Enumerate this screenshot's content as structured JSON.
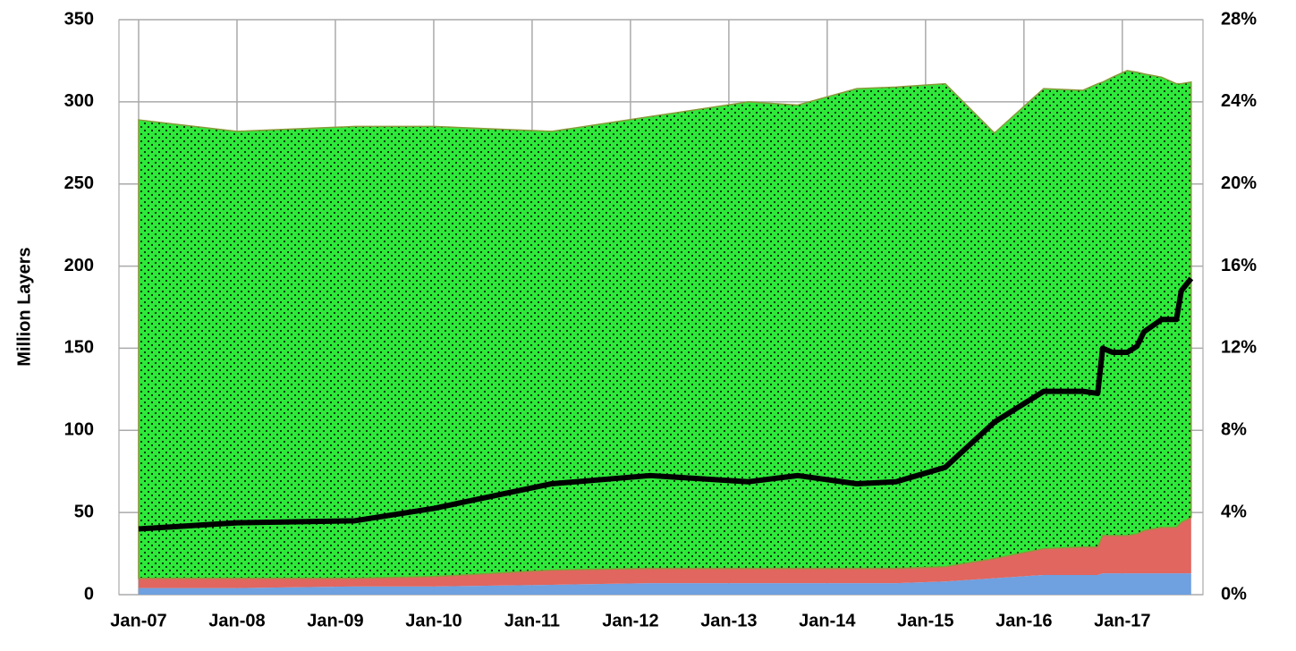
{
  "chart_data": {
    "type": "stacked-area-line",
    "y_label": "Million Layers",
    "x": [
      2007.0,
      2008.0,
      2009.2,
      2010.0,
      2011.2,
      2012.2,
      2013.2,
      2013.7,
      2014.3,
      2014.7,
      2015.2,
      2015.7,
      2016.2,
      2016.6,
      2016.75,
      2016.8,
      2016.9,
      2017.05,
      2017.15,
      2017.22,
      2017.4,
      2017.55,
      2017.6,
      2017.7
    ],
    "series": [
      {
        "color": "#6fa0e0",
        "values": [
          4,
          4,
          5,
          5,
          6,
          7,
          7,
          7,
          7,
          7,
          8,
          10,
          12,
          12,
          12,
          13,
          13,
          13,
          13,
          13,
          13,
          13,
          13,
          13
        ]
      },
      {
        "color": "#e0665f",
        "values": [
          6,
          6,
          5,
          6,
          9,
          9,
          9,
          9,
          9,
          9,
          9,
          12,
          16,
          17,
          17,
          23,
          23,
          23,
          24,
          26,
          28,
          28,
          31,
          34
        ]
      },
      {
        "color": "#2ee83a",
        "pattern": "dots",
        "values": [
          279,
          272,
          275,
          274,
          267,
          275,
          284,
          282,
          292,
          293,
          294,
          259,
          280,
          278,
          282,
          276,
          279,
          283,
          281,
          278,
          274,
          270,
          267,
          265
        ]
      },
      {
        "color": "#000000",
        "axis": "y2",
        "values": [
          3.2,
          3.5,
          3.6,
          4.2,
          5.4,
          5.8,
          5.5,
          5.8,
          5.4,
          5.5,
          6.2,
          8.4,
          9.9,
          9.9,
          9.8,
          12.0,
          11.8,
          11.8,
          12.1,
          12.8,
          13.4,
          13.4,
          14.8,
          15.4
        ]
      }
    ],
    "xlim": [
      2006.8,
      2017.82
    ],
    "xticks": [
      {
        "value": 2007,
        "label": "Jan-07"
      },
      {
        "value": 2008,
        "label": "Jan-08"
      },
      {
        "value": 2009,
        "label": "Jan-09"
      },
      {
        "value": 2010,
        "label": "Jan-10"
      },
      {
        "value": 2011,
        "label": "Jan-11"
      },
      {
        "value": 2012,
        "label": "Jan-12"
      },
      {
        "value": 2013,
        "label": "Jan-13"
      },
      {
        "value": 2014,
        "label": "Jan-14"
      },
      {
        "value": 2015,
        "label": "Jan-15"
      },
      {
        "value": 2016,
        "label": "Jan-16"
      },
      {
        "value": 2017,
        "label": "Jan-17"
      }
    ],
    "ylim": [
      0,
      350
    ],
    "yticks": [
      0,
      50,
      100,
      150,
      200,
      250,
      300,
      350
    ],
    "y2lim": [
      0,
      28
    ],
    "y2ticks": [
      {
        "value": 0,
        "label": "0%"
      },
      {
        "value": 4,
        "label": "4%"
      },
      {
        "value": 8,
        "label": "8%"
      },
      {
        "value": 12,
        "label": "12%"
      },
      {
        "value": 16,
        "label": "16%"
      },
      {
        "value": 20,
        "label": "20%"
      },
      {
        "value": 24,
        "label": "24%"
      },
      {
        "value": 28,
        "label": "28%"
      }
    ],
    "grid": true
  }
}
